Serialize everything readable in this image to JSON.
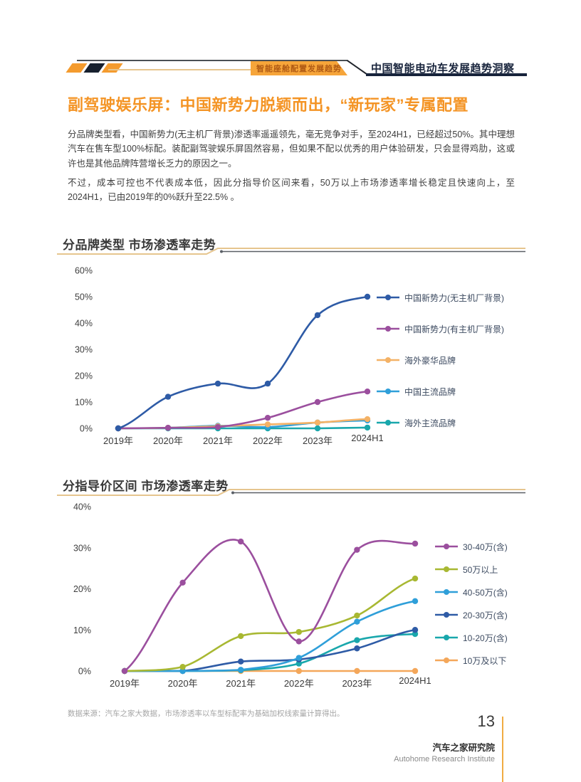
{
  "header": {
    "badge_label": "智能座舱配置发展趋势",
    "doc_title": "中国智能电动车发展趋势洞察"
  },
  "article": {
    "title": "副驾驶娱乐屏：中国新势力脱颖而出，“新玩家”专属配置",
    "paragraphs": [
      "分品牌类型看，中国新势力(无主机厂背景)渗透率遥遥领先，毫无竞争对手，至2024H1，已经超过50%。其中理想汽车在售车型100%标配。装配副驾驶娱乐屏固然容易，但如果不配以优秀的用户体验研发，只会显得鸡肋，这或许也是其他品牌阵营增长乏力的原因之一。",
      "不过，成本可控也不代表成本低，因此分指导价区间来看，50万以上市场渗透率增长稳定且快速向上，至2024H1，已由2019年的0%跃升至22.5% 。"
    ]
  },
  "footnote": "数据来源：汽车之家大数据，市场渗透率以车型标配率为基础加权线索量计算得出。",
  "footer": {
    "page_number": "13",
    "org_cn": "汽车之家研究院",
    "org_en": "Autohome Research Institute"
  },
  "colors": {
    "accent_orange": "#f49b33",
    "dark_navy": "#17233b"
  },
  "chart_data": [
    {
      "type": "line",
      "title": "分品牌类型  市场渗透率走势",
      "categories": [
        "2019年",
        "2020年",
        "2021年",
        "2022年",
        "2023年",
        "2024H1"
      ],
      "ylim": [
        0,
        60
      ],
      "ytick_labels": [
        "0%",
        "10%",
        "20%",
        "30%",
        "40%",
        "50%",
        "60%"
      ],
      "grid": false,
      "smooth": true,
      "legend_position": "right",
      "series": [
        {
          "name": "中国新势力(无主机厂背景)",
          "color": "#2e5ba6",
          "values": [
            0,
            12,
            17,
            17,
            43,
            50
          ]
        },
        {
          "name": "中国新势力(有主机厂背景)",
          "color": "#9b4f9e",
          "values": [
            0,
            0.2,
            0.5,
            4,
            10,
            14
          ]
        },
        {
          "name": "海外豪华品牌",
          "color": "#f4b266",
          "values": [
            0,
            0.2,
            0.8,
            1.5,
            2.2,
            3.5
          ]
        },
        {
          "name": "中国主流品牌",
          "color": "#2f9fd9",
          "values": [
            0,
            0.2,
            1,
            0.5,
            2.2,
            3
          ]
        },
        {
          "name": "海外主流品牌",
          "color": "#19a7ac",
          "values": [
            0,
            0,
            0,
            0,
            0,
            0.3
          ]
        }
      ]
    },
    {
      "type": "line",
      "title": "分指导价区间  市场渗透率走势",
      "categories": [
        "2019年",
        "2020年",
        "2021年",
        "2022年",
        "2023年",
        "2024H1"
      ],
      "ylim": [
        0,
        40
      ],
      "ytick_labels": [
        "0%",
        "10%",
        "20%",
        "30%",
        "40%"
      ],
      "grid": false,
      "smooth": true,
      "legend_position": "right",
      "series": [
        {
          "name": "30-40万(含)",
          "color": "#9b4f9e",
          "values": [
            0,
            21.5,
            31.5,
            7.2,
            29.5,
            31
          ]
        },
        {
          "name": "50万以上",
          "color": "#a8b832",
          "values": [
            0,
            1,
            8.5,
            9.5,
            13.5,
            22.5
          ]
        },
        {
          "name": "40-50万(含)",
          "color": "#2f9fd9",
          "values": [
            0,
            0,
            0.3,
            3.2,
            12,
            17
          ]
        },
        {
          "name": "20-30万(含)",
          "color": "#2e5ba6",
          "values": [
            0,
            0,
            2.3,
            2.8,
            5.5,
            10
          ]
        },
        {
          "name": "10-20万(含)",
          "color": "#19a7ac",
          "values": [
            0,
            0,
            0.2,
            1.8,
            7.5,
            9
          ]
        },
        {
          "name": "10万及以下",
          "color": "#f4a75a",
          "values": [
            0,
            0,
            0,
            0,
            0,
            0
          ]
        }
      ]
    }
  ]
}
